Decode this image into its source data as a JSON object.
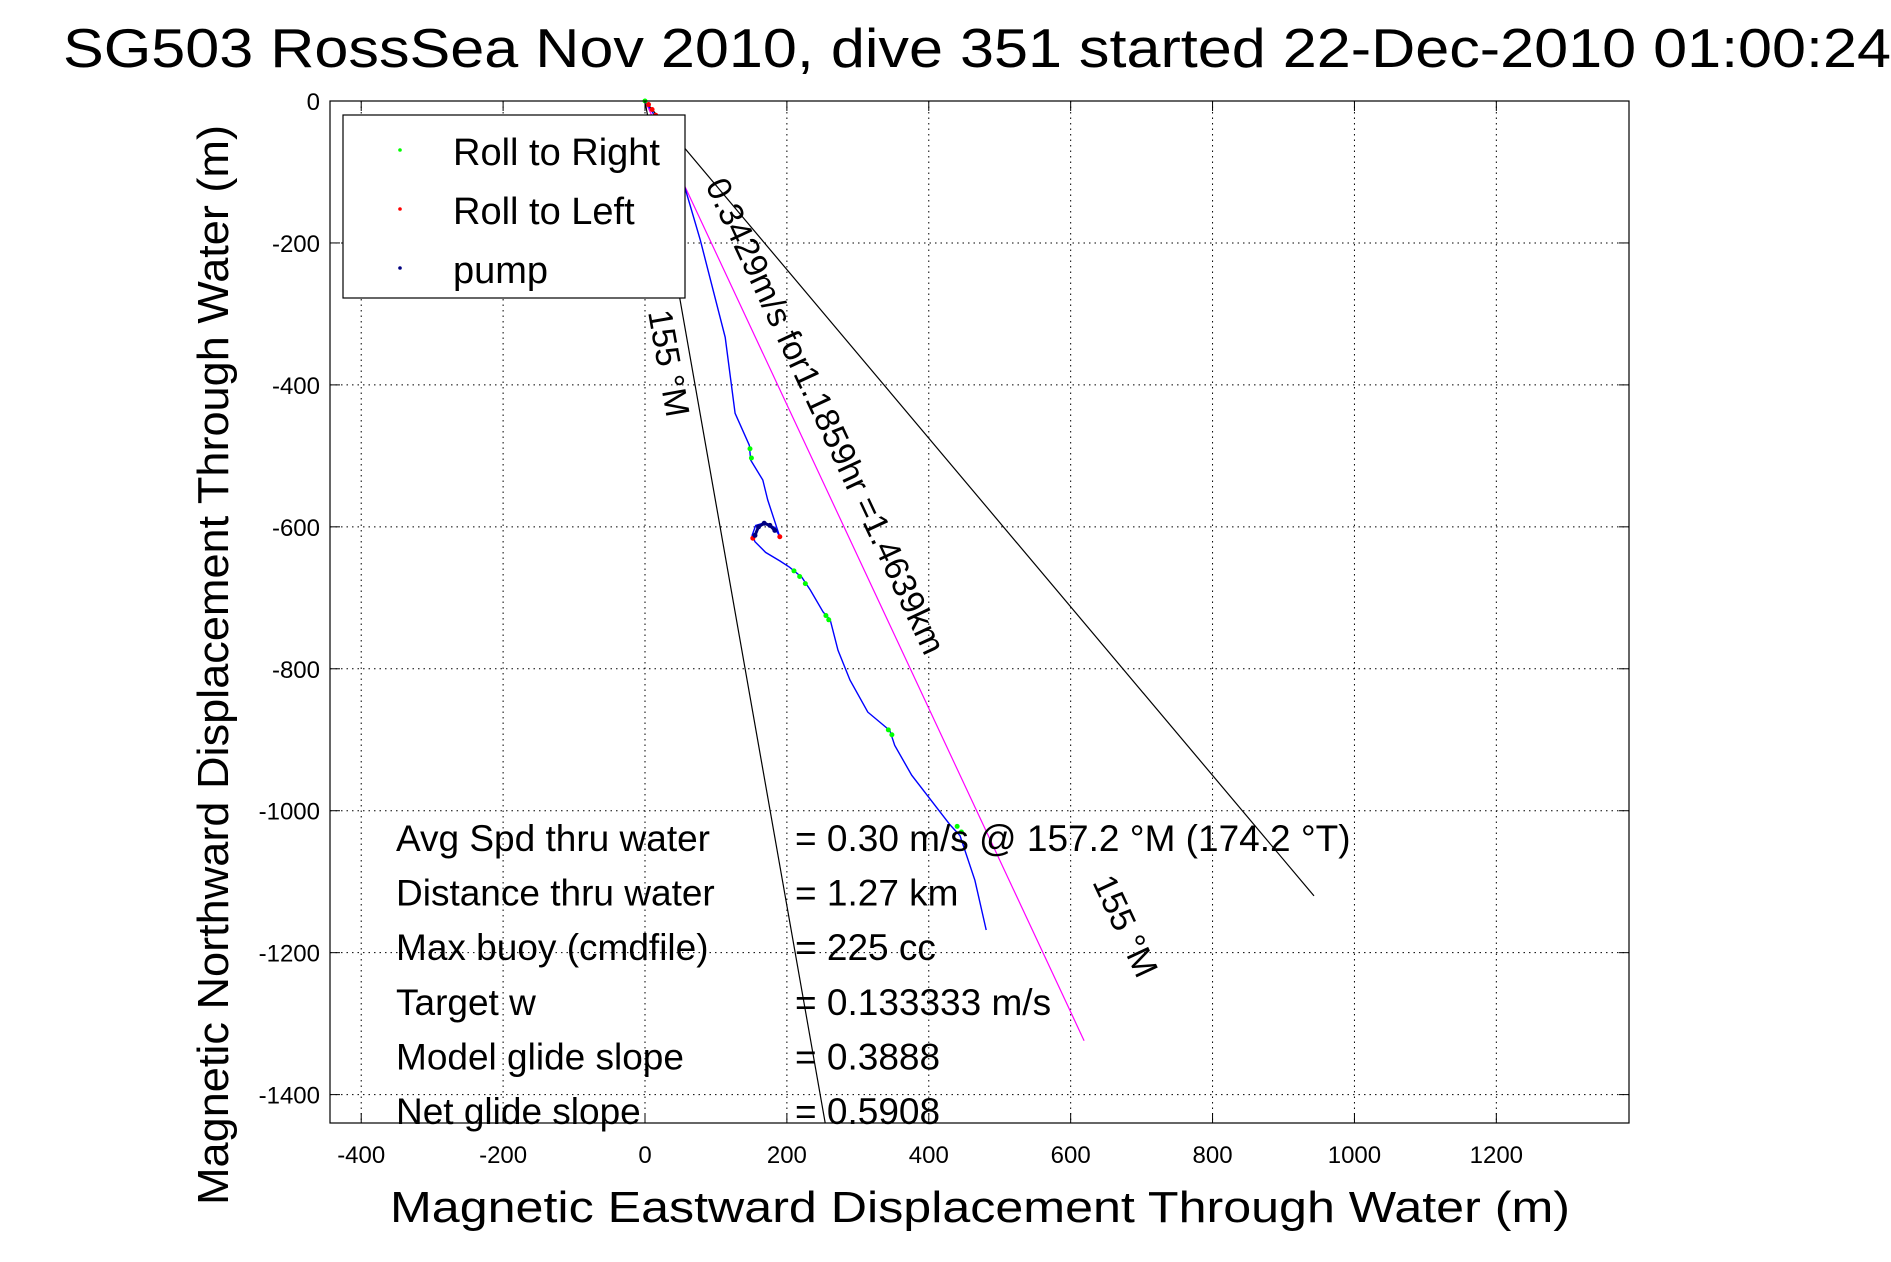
{
  "chart_data": {
    "type": "line",
    "title": "SG503 RossSea Nov 2010, dive 351 started 22-Dec-2010 01:00:24",
    "xlabel": "Magnetic Eastward Displacement Through Water (m)",
    "ylabel": "Magnetic Northward Displacement Through Water (m)",
    "xlim": [
      -444,
      1387
    ],
    "ylim": [
      -1440,
      0
    ],
    "grid": true,
    "x_ticks": [
      -400,
      -200,
      0,
      200,
      400,
      600,
      800,
      1000,
      1200
    ],
    "y_ticks": [
      0,
      -200,
      -400,
      -600,
      -800,
      -1000,
      -1200,
      -1400
    ],
    "legend": {
      "placement": "top-left",
      "entries": [
        {
          "label": "Roll to Right",
          "color": "#00ff00"
        },
        {
          "label": "Roll to Left",
          "color": "#ff0000"
        },
        {
          "label": "pump",
          "color": "#000080"
        }
      ]
    },
    "series": [
      {
        "name": "track",
        "color": "#0000ff",
        "x": [
          0,
          20,
          56,
          78,
          113,
          127,
          147,
          149,
          166,
          173,
          190,
          183,
          169,
          156,
          151,
          155,
          170,
          190,
          204,
          221,
          233,
          251,
          261,
          272,
          289,
          314,
          345,
          352,
          376,
          430,
          444,
          465,
          481
        ],
        "y": [
          0,
          -30,
          -121,
          -196,
          -333,
          -440,
          -485,
          -506,
          -534,
          -562,
          -614,
          -601,
          -594,
          -598,
          -612,
          -621,
          -636,
          -648,
          -657,
          -671,
          -689,
          -720,
          -731,
          -774,
          -816,
          -861,
          -887,
          -908,
          -950,
          -1020,
          -1035,
          -1098,
          -1168
        ]
      },
      {
        "name": "Roll to Right",
        "color": "#00ff00",
        "x": [
          0,
          148,
          150,
          210,
          218,
          226,
          255,
          259,
          343,
          348,
          440,
          446
        ],
        "y": [
          0,
          -490,
          -503,
          -662,
          -670,
          -680,
          -725,
          -731,
          -886,
          -893,
          -1022,
          -1030
        ]
      },
      {
        "name": "Roll to Left",
        "color": "#ff0000",
        "x": [
          5,
          10,
          15,
          152,
          190
        ],
        "y": [
          -5,
          -12,
          -20,
          -616,
          -614
        ]
      },
      {
        "name": "pump",
        "color": "#000080",
        "x": [
          155,
          160,
          168,
          176,
          183
        ],
        "y": [
          -612,
          -600,
          -595,
          -598,
          -605
        ]
      },
      {
        "name": "net displacement",
        "color": "#ff00ff",
        "x": [
          0,
          619
        ],
        "y": [
          0,
          -1324
        ]
      },
      {
        "name": "heading bound left",
        "color": "#000000",
        "x": [
          0,
          254
        ],
        "y": [
          0,
          -1440
        ]
      },
      {
        "name": "heading bound right",
        "color": "#000000",
        "x": [
          0,
          943
        ],
        "y": [
          0,
          -1120
        ]
      }
    ],
    "annotations": {
      "along_track": "0.3429m/s for1.1859hr =1.4639km",
      "heading_start": "155 °M",
      "heading_end": "155 °M"
    },
    "stats": [
      {
        "label": "Avg Spd thru water",
        "value": "=  0.30 m/s @ 157.2 °M (174.2 °T)"
      },
      {
        "label": "Distance thru water",
        "value": "=  1.27 km"
      },
      {
        "label": "Max buoy (cmdfile)",
        "value": "= 225 cc"
      },
      {
        "label": "Target w",
        "value": "= 0.133333 m/s"
      },
      {
        "label": "Model glide slope",
        "value": "= 0.3888"
      },
      {
        "label": "Net glide slope",
        "value": "= 0.5908"
      }
    ]
  }
}
